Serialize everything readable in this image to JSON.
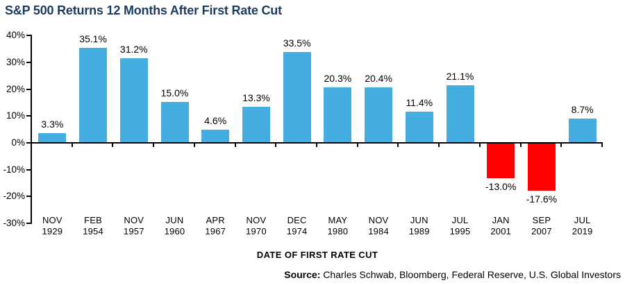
{
  "title": "S&P 500 Returns 12 Months After First Rate Cut",
  "colors": {
    "title": "#1C3B5D",
    "axis": "#000000",
    "positive_bar": "#45ADE0",
    "negative_bar": "#FF0000"
  },
  "chart_data": {
    "type": "bar",
    "title": "S&P 500 Returns 12 Months After First Rate Cut",
    "xlabel": "DATE OF FIRST RATE CUT",
    "ylabel": "",
    "ylim": [
      -30,
      40
    ],
    "ytick_step": 10,
    "grid": false,
    "legend": "none",
    "yticks": [
      {
        "value": 40,
        "label": "40%"
      },
      {
        "value": 30,
        "label": "30%"
      },
      {
        "value": 20,
        "label": "20%"
      },
      {
        "value": 10,
        "label": "10%"
      },
      {
        "value": 0,
        "label": "0%"
      },
      {
        "value": -10,
        "label": "-10%"
      },
      {
        "value": -20,
        "label": "-20%"
      },
      {
        "value": -30,
        "label": "-30%"
      }
    ],
    "categories": [
      {
        "month": "NOV",
        "year": "1929"
      },
      {
        "month": "FEB",
        "year": "1954"
      },
      {
        "month": "NOV",
        "year": "1957"
      },
      {
        "month": "JUN",
        "year": "1960"
      },
      {
        "month": "APR",
        "year": "1967"
      },
      {
        "month": "NOV",
        "year": "1970"
      },
      {
        "month": "DEC",
        "year": "1974"
      },
      {
        "month": "MAY",
        "year": "1980"
      },
      {
        "month": "NOV",
        "year": "1984"
      },
      {
        "month": "JUN",
        "year": "1989"
      },
      {
        "month": "JUL",
        "year": "1995"
      },
      {
        "month": "JAN",
        "year": "2001"
      },
      {
        "month": "SEP",
        "year": "2007"
      },
      {
        "month": "JUL",
        "year": "2019"
      }
    ],
    "values": [
      3.3,
      35.1,
      31.2,
      15.0,
      4.6,
      13.3,
      33.5,
      20.3,
      20.4,
      11.4,
      21.1,
      -13.0,
      -17.6,
      8.7
    ],
    "value_labels": [
      "3.3%",
      "35.1%",
      "31.2%",
      "15.0%",
      "4.6%",
      "13.3%",
      "33.5%",
      "20.3%",
      "20.4%",
      "11.4%",
      "21.1%",
      "-13.0%",
      "-17.6%",
      "8.7%"
    ]
  },
  "source": {
    "label": "Source:",
    "text": "Charles Schwab, Bloomberg, Federal Reserve, U.S. Global Investors"
  }
}
